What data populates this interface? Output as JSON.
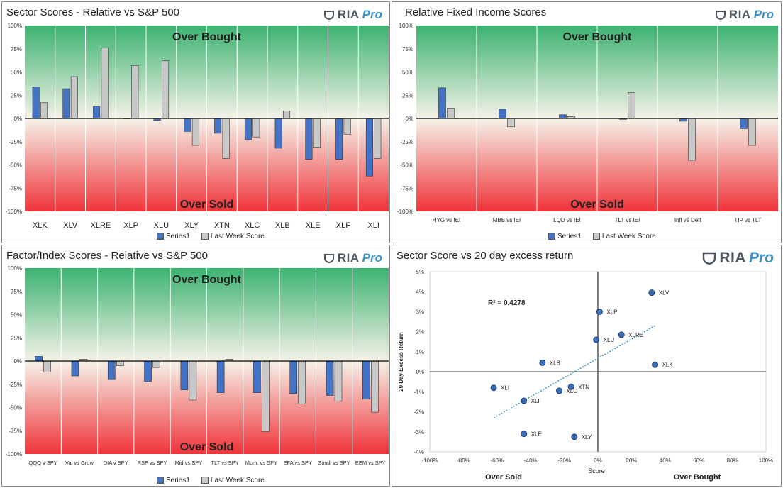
{
  "colors": {
    "series1": "#4472c4",
    "last_week": "#c8c8c8",
    "green": "#3cb371",
    "red": "#f0343a",
    "mid": "#f5f2e8",
    "trend": "#3d93c6",
    "point": "#3a6fb8"
  },
  "logo": {
    "ria": "RIA",
    "pro": "Pro"
  },
  "band_labels": {
    "over_bought": "Over Bought",
    "over_sold": "Over Sold"
  },
  "y_ticks": [
    "100%",
    "75%",
    "50%",
    "25%",
    "0%",
    "-25%",
    "-50%",
    "-75%",
    "-100%"
  ],
  "legend": {
    "series1": "Series1",
    "last_week": "Last Week Score"
  },
  "panels": [
    {
      "title": "Sector Scores - Relative vs S&P 500"
    },
    {
      "title": "Relative Fixed Income Scores"
    },
    {
      "title": "Factor/Index Scores - Relative vs S&P 500"
    },
    {
      "title": "Sector Score vs 20 day excess return"
    }
  ],
  "chart_data": [
    {
      "type": "bar",
      "title": "Sector Scores - Relative vs S&P 500",
      "categories": [
        "XLK",
        "XLV",
        "XLRE",
        "XLP",
        "XLU",
        "XLY",
        "XTN",
        "XLC",
        "XLB",
        "XLE",
        "XLF",
        "XLI"
      ],
      "series": [
        {
          "name": "Series1",
          "values": [
            34,
            32,
            13,
            0,
            -2,
            -14,
            -16,
            -23,
            -32,
            -44,
            -44,
            -62
          ]
        },
        {
          "name": "Last Week Score",
          "values": [
            17,
            45,
            76,
            57,
            62,
            -29,
            -43,
            -20,
            8,
            -31,
            -17,
            -43
          ]
        }
      ],
      "ylim": [
        -100,
        100
      ]
    },
    {
      "type": "bar",
      "title": "Relative Fixed Income Scores",
      "categories": [
        "HYG vs IEI",
        "MBB vs IEI",
        "LQD vs IEI",
        "TLT vs IEI",
        "Infl vs Defl",
        "TIP vs TLT"
      ],
      "series": [
        {
          "name": "Series1",
          "values": [
            33,
            10,
            4,
            -1,
            -3,
            -11
          ]
        },
        {
          "name": "Last Week Score",
          "values": [
            11,
            -9,
            2,
            28,
            -45,
            -29
          ]
        }
      ],
      "ylim": [
        -100,
        100
      ]
    },
    {
      "type": "bar",
      "title": "Factor/Index Scores - Relative vs S&P 500",
      "categories": [
        "QQQ v SPY",
        "Val vs Grow",
        "DIA v SPY",
        "RSP vs SPY",
        "Mid vs SPY",
        "TLT vs SPY",
        "Mom. vs SPY",
        "EFA vs SPY",
        "Small vs SPY",
        "EEM vs SPY"
      ],
      "series": [
        {
          "name": "Series1",
          "values": [
            5,
            -16,
            -20,
            -22,
            -31,
            -34,
            -34,
            -35,
            -37,
            -41
          ]
        },
        {
          "name": "Last Week Score",
          "values": [
            -12,
            2,
            -5,
            -7,
            -42,
            2,
            -76,
            -46,
            -43,
            -55
          ]
        }
      ],
      "ylim": [
        -100,
        100
      ]
    },
    {
      "type": "scatter",
      "title": "Sector Score vs 20 day excess return",
      "xlabel": "Score",
      "ylabel": "20 Day Excess Return",
      "xlim": [
        -100,
        100
      ],
      "ylim": [
        -4,
        5
      ],
      "x_ticks": [
        "-100%",
        "-80%",
        "-60%",
        "-40%",
        "-20%",
        "0%",
        "20%",
        "40%",
        "60%",
        "80%",
        "100%"
      ],
      "y_ticks": [
        "5%",
        "4%",
        "3%",
        "2%",
        "1%",
        "0%",
        "-1%",
        "-2%",
        "-3%",
        "-4%"
      ],
      "r2_label": "R² = 0.4278",
      "over_sold": "Over Sold",
      "over_bought": "Over Bought",
      "points": [
        {
          "label": "XLV",
          "x": 32,
          "y": 3.95
        },
        {
          "label": "XLP",
          "x": 1,
          "y": 3.0
        },
        {
          "label": "XLRE",
          "x": 14,
          "y": 1.85
        },
        {
          "label": "XLU",
          "x": -1,
          "y": 1.6
        },
        {
          "label": "XLK",
          "x": 34,
          "y": 0.35
        },
        {
          "label": "XLB",
          "x": -33,
          "y": 0.45
        },
        {
          "label": "XLI",
          "x": -62,
          "y": -0.8
        },
        {
          "label": "XTN",
          "x": -16,
          "y": -0.75
        },
        {
          "label": "XLC",
          "x": -23,
          "y": -0.95
        },
        {
          "label": "XLF",
          "x": -44,
          "y": -1.45
        },
        {
          "label": "XLE",
          "x": -44,
          "y": -3.1
        },
        {
          "label": "XLY",
          "x": -14,
          "y": -3.25
        }
      ],
      "trend": {
        "x1": -62,
        "y1": -2.3,
        "x2": 34,
        "y2": 2.3
      }
    }
  ]
}
